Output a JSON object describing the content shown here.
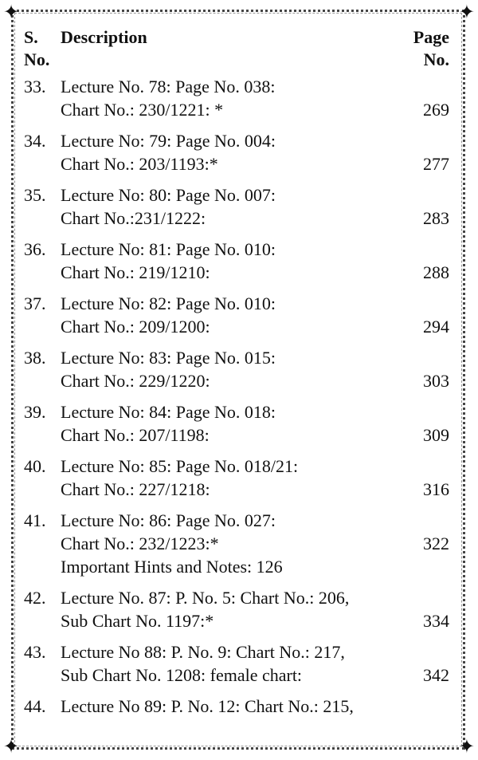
{
  "header": {
    "sno_line1": "S.",
    "sno_line2": "No.",
    "description": "Description",
    "page_line1": "Page",
    "page_line2": "No."
  },
  "entries": [
    {
      "num": "33.",
      "lines": [
        "Lecture No. 78: Page No. 038:",
        "Chart No.: 230/1221: *"
      ],
      "page": "269",
      "page_line": 1
    },
    {
      "num": "34.",
      "lines": [
        "Lecture No: 79: Page No. 004:",
        "Chart No.: 203/1193:*"
      ],
      "page": "277",
      "page_line": 1
    },
    {
      "num": "35.",
      "lines": [
        "Lecture No: 80: Page No. 007:",
        "Chart No.:231/1222:"
      ],
      "page": "283",
      "page_line": 1
    },
    {
      "num": "36.",
      "lines": [
        "Lecture No: 81: Page No. 010:",
        "Chart No.: 219/1210:"
      ],
      "page": "288",
      "page_line": 1
    },
    {
      "num": "37.",
      "lines": [
        "Lecture No: 82: Page No. 010:",
        "Chart No.: 209/1200:"
      ],
      "page": "294",
      "page_line": 1
    },
    {
      "num": "38.",
      "lines": [
        "Lecture No: 83: Page No. 015:",
        "Chart No.: 229/1220:"
      ],
      "page": "303",
      "page_line": 1
    },
    {
      "num": "39.",
      "lines": [
        "Lecture No: 84: Page No. 018:",
        "Chart No.: 207/1198:"
      ],
      "page": "309",
      "page_line": 1
    },
    {
      "num": "40.",
      "lines": [
        "Lecture No: 85: Page No. 018/21:",
        "Chart No.: 227/1218:"
      ],
      "page": "316",
      "page_line": 1
    },
    {
      "num": "41.",
      "lines": [
        "Lecture No: 86: Page No. 027:",
        "Chart No.: 232/1223:*",
        "Important Hints and Notes: 126"
      ],
      "page": "322",
      "page_line": 1
    },
    {
      "num": "42.",
      "lines": [
        "Lecture No. 87: P. No. 5: Chart No.: 206,",
        "Sub Chart No. 1197:*"
      ],
      "page": "334",
      "page_line": 1
    },
    {
      "num": "43.",
      "lines": [
        "Lecture No 88: P. No. 9: Chart No.: 217,",
        "Sub Chart No. 1208: female chart:"
      ],
      "page": "342",
      "page_line": 1
    },
    {
      "num": "44.",
      "lines": [
        "Lecture No 89: P. No. 12: Chart No.: 215,"
      ],
      "page": null,
      "page_line": 0
    }
  ]
}
